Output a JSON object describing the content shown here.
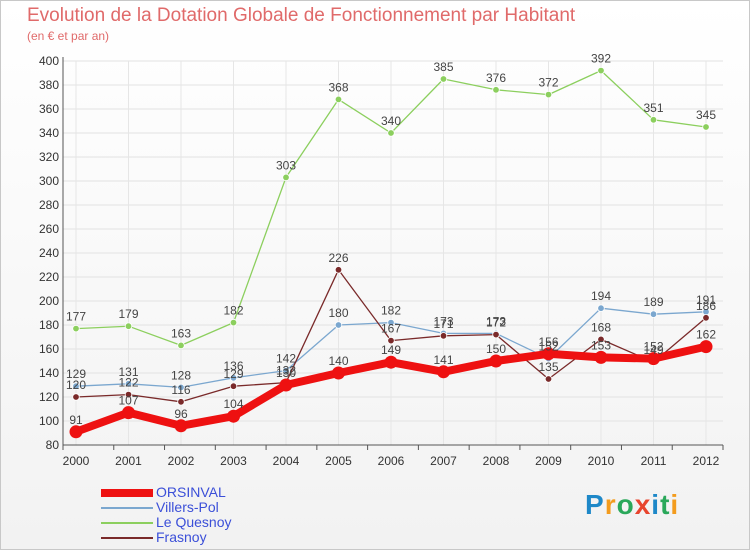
{
  "title": "Evolution de la Dotation Globale de Fonctionnement par Habitant",
  "subtitle": "(en € et par an)",
  "logo_text": "Proxiti",
  "chart_data": {
    "type": "line",
    "title": "Evolution de la Dotation Globale de Fonctionnement par Habitant",
    "subtitle": "(en € et par an)",
    "xlabel": "",
    "ylabel": "",
    "ylim": [
      80,
      400
    ],
    "yticks": [
      80,
      100,
      120,
      140,
      160,
      180,
      200,
      220,
      240,
      260,
      280,
      300,
      320,
      340,
      360,
      380,
      400
    ],
    "categories": [
      "2000",
      "2001",
      "2002",
      "2003",
      "2004",
      "2005",
      "2006",
      "2007",
      "2008",
      "2009",
      "2010",
      "2011",
      "2012"
    ],
    "grid": true,
    "legend_position": "bottom-left",
    "series": [
      {
        "name": "ORSINVAL",
        "color": "#ee1111",
        "values": [
          91,
          107,
          96,
          104,
          130,
          140,
          149,
          141,
          150,
          156,
          153,
          152,
          162
        ]
      },
      {
        "name": "Villers-Pol",
        "color": "#7ba7cf",
        "values": [
          129,
          131,
          128,
          136,
          142,
          180,
          182,
          173,
          173,
          152,
          194,
          189,
          191
        ]
      },
      {
        "name": "Le Quesnoy",
        "color": "#8ccf5e",
        "values": [
          177,
          179,
          163,
          182,
          303,
          368,
          340,
          385,
          376,
          372,
          392,
          351,
          345
        ]
      },
      {
        "name": "Frasnoy",
        "color": "#7a2a2a",
        "values": [
          120,
          122,
          116,
          129,
          132,
          226,
          167,
          171,
          172,
          135,
          168,
          149,
          186
        ]
      }
    ]
  }
}
